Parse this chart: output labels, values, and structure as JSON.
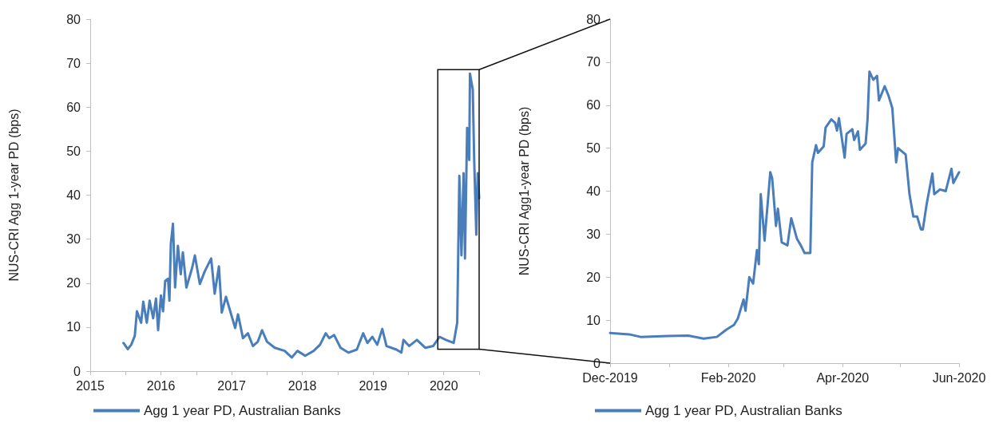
{
  "chart_data": [
    {
      "type": "line",
      "ylabel": "NUS-CRI Agg 1-year PD (bps)",
      "xlim": [
        2015,
        2020.5
      ],
      "ylim": [
        0,
        80
      ],
      "xticks": [
        2015,
        {
          "value": 2015.5,
          "label": null
        },
        2016,
        {
          "value": 2016.5,
          "label": null
        },
        2017,
        {
          "value": 2017.5,
          "label": null
        },
        2018,
        {
          "value": 2018.5,
          "label": null
        },
        2019,
        {
          "value": 2019.5,
          "label": null
        },
        2020,
        {
          "value": 2020.5,
          "label": null
        }
      ],
      "yticks": [
        0,
        10,
        20,
        30,
        40,
        50,
        60,
        70,
        80
      ],
      "grid": false,
      "legend": "bottom",
      "marker": "none",
      "line_style": "solid",
      "x": [
        2015.47,
        2015.53,
        2015.58,
        2015.63,
        2015.66,
        2015.72,
        2015.75,
        2015.8,
        2015.84,
        2015.89,
        2015.93,
        2015.96,
        2016.0,
        2016.03,
        2016.06,
        2016.1,
        2016.12,
        2016.14,
        2016.17,
        2016.2,
        2016.24,
        2016.28,
        2016.31,
        2016.36,
        2016.44,
        2016.48,
        2016.55,
        2016.62,
        2016.71,
        2016.76,
        2016.82,
        2016.86,
        2016.92,
        2016.98,
        2017.05,
        2017.09,
        2017.16,
        2017.23,
        2017.3,
        2017.37,
        2017.43,
        2017.5,
        2017.61,
        2017.75,
        2017.85,
        2017.93,
        2018.04,
        2018.16,
        2018.25,
        2018.33,
        2018.38,
        2018.45,
        2018.54,
        2018.65,
        2018.77,
        2018.86,
        2018.92,
        2018.99,
        2019.06,
        2019.13,
        2019.19,
        2019.33,
        2019.4,
        2019.43,
        2019.51,
        2019.62,
        2019.74,
        2019.85,
        2019.94,
        2020.03,
        2020.14,
        2020.19,
        2020.22,
        2020.25,
        2020.28,
        2020.3,
        2020.33,
        2020.36,
        2020.37,
        2020.41,
        2020.43,
        2020.46,
        2020.48,
        2020.5
      ],
      "series": [
        {
          "name": "Agg 1 year PD, Australian Banks",
          "color": "#4a7ebb",
          "values": [
            6.4,
            5,
            6,
            8,
            13.6,
            11,
            15.8,
            11,
            16,
            12,
            16.5,
            9.3,
            17.2,
            13.6,
            20.5,
            21,
            16,
            29,
            33.5,
            19,
            28.5,
            22,
            27,
            19,
            23.4,
            26.3,
            19.8,
            22.7,
            25.6,
            17.6,
            23.8,
            13.3,
            16.9,
            13.6,
            9.8,
            12.9,
            7.5,
            8.6,
            5.7,
            6.7,
            9.3,
            6.7,
            5.3,
            4.6,
            3.1,
            4.6,
            3.5,
            4.6,
            6,
            8.6,
            7.5,
            8.2,
            5.3,
            4.2,
            4.9,
            8.6,
            6.4,
            7.8,
            6,
            9.6,
            5.7,
            4.9,
            4.2,
            7.1,
            5.7,
            7.1,
            5.3,
            5.7,
            7.8,
            7.1,
            6.4,
            11,
            44.4,
            26.3,
            45,
            25.6,
            55.3,
            48,
            67.6,
            64,
            48,
            31,
            45,
            39.3
          ]
        }
      ]
    },
    {
      "type": "line",
      "ylabel": "NUS-CRI Agg1-year PD (bps)",
      "xlim": [
        "2019-12-01",
        "2020-06-01"
      ],
      "ylim": [
        0,
        80
      ],
      "xticks": [
        {
          "value": "2019-12-01",
          "label": "Dec-2019"
        },
        {
          "value": "2020-01-01",
          "label": null
        },
        {
          "value": "2020-02-01",
          "label": "Feb-2020"
        },
        {
          "value": "2020-03-01",
          "label": null
        },
        {
          "value": "2020-04-01",
          "label": "Apr-2020"
        },
        {
          "value": "2020-05-01",
          "label": null
        },
        {
          "value": "2020-06-01",
          "label": "Jun-2020"
        }
      ],
      "yticks": [
        0,
        10,
        20,
        30,
        40,
        50,
        60,
        70,
        80
      ],
      "grid": false,
      "legend": "bottom",
      "marker": "none",
      "line_style": "solid",
      "x": [
        "2019-12-01",
        "2019-12-11",
        "2019-12-17",
        "2019-12-31",
        "2020-01-11",
        "2020-01-19",
        "2020-01-26",
        "2020-01-31",
        "2020-02-04",
        "2020-02-06",
        "2020-02-09",
        "2020-02-10",
        "2020-02-12",
        "2020-02-14",
        "2020-02-16",
        "2020-02-17",
        "2020-02-18",
        "2020-02-20",
        "2020-02-23",
        "2020-02-24",
        "2020-02-26",
        "2020-02-27",
        "2020-02-29",
        "2020-03-03",
        "2020-03-05",
        "2020-03-08",
        "2020-03-10",
        "2020-03-12",
        "2020-03-15",
        "2020-03-16",
        "2020-03-18",
        "2020-03-19",
        "2020-03-22",
        "2020-03-23",
        "2020-03-26",
        "2020-03-28",
        "2020-03-29",
        "2020-03-30",
        "2020-04-02",
        "2020-04-03",
        "2020-04-06",
        "2020-04-07",
        "2020-04-09",
        "2020-04-10",
        "2020-04-13",
        "2020-04-14",
        "2020-04-15",
        "2020-04-17",
        "2020-04-19",
        "2020-04-20",
        "2020-04-23",
        "2020-04-25",
        "2020-04-27",
        "2020-04-29",
        "2020-04-30",
        "2020-05-04",
        "2020-05-06",
        "2020-05-08",
        "2020-05-10",
        "2020-05-12",
        "2020-05-13",
        "2020-05-15",
        "2020-05-18",
        "2020-05-19",
        "2020-05-22",
        "2020-05-25",
        "2020-05-28",
        "2020-05-29",
        "2020-06-01"
      ],
      "series": [
        {
          "name": "Agg 1 year PD, Australian Banks",
          "color": "#4a7ebb",
          "values": [
            7,
            6.7,
            6.1,
            6.3,
            6.4,
            5.7,
            6.1,
            7.8,
            8.9,
            10.4,
            14.8,
            12.2,
            20,
            18.5,
            26.3,
            23,
            39.3,
            28.5,
            44.4,
            43,
            31.9,
            35.9,
            28.1,
            27.4,
            33.7,
            28.9,
            27.4,
            25.6,
            25.6,
            46.7,
            50.7,
            48.9,
            50.4,
            54.8,
            56.7,
            55.9,
            54.1,
            57,
            47.8,
            53.3,
            54.4,
            51.9,
            53.9,
            49.6,
            51.1,
            56.7,
            67.8,
            65.9,
            66.8,
            61.1,
            64.4,
            62.2,
            59.3,
            46.7,
            50,
            48.5,
            39.3,
            34.1,
            34.1,
            31.1,
            31.1,
            37,
            44.1,
            39.3,
            40.4,
            40,
            45.2,
            41.9,
            44.4
          ]
        }
      ]
    }
  ]
}
